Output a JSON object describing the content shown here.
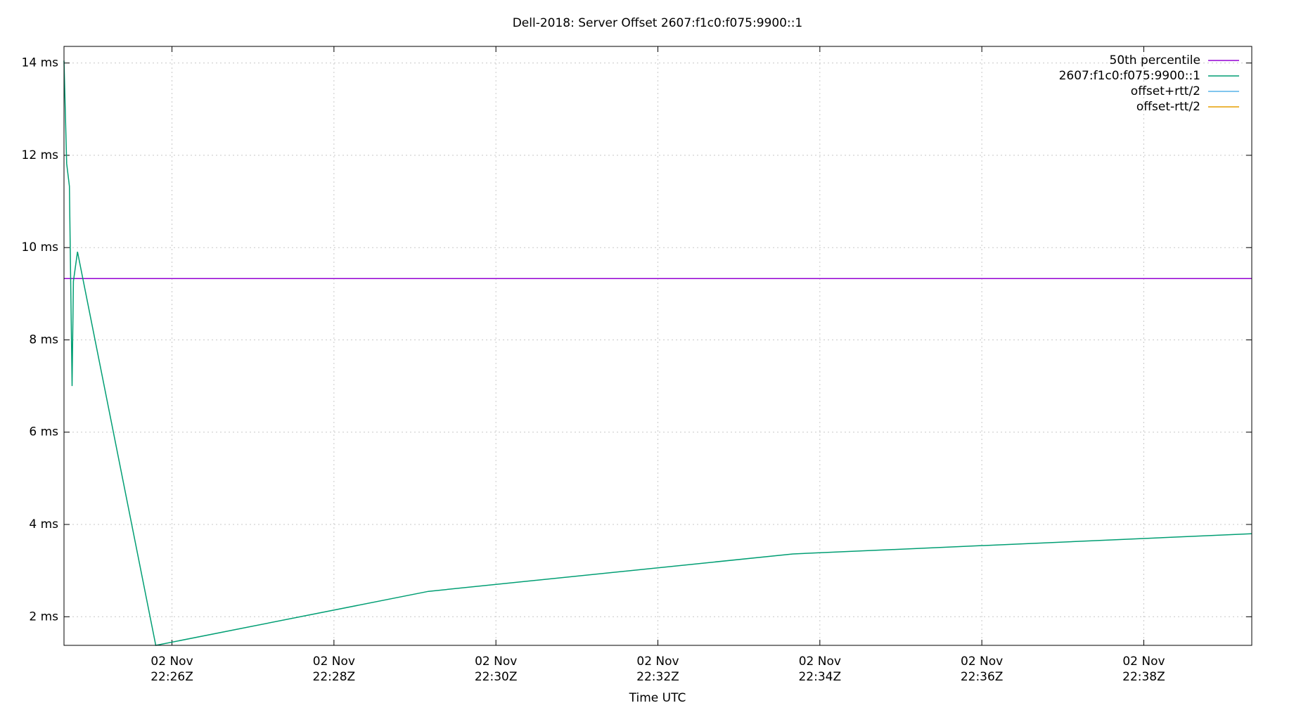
{
  "chart_data": {
    "type": "line",
    "title": "Dell-2018: Server Offset 2607:f1c0:f075:9900::1",
    "x_label": "Time UTC",
    "x": [
      "22:24:40",
      "22:24:42",
      "22:24:44",
      "22:24:46",
      "22:24:47",
      "22:24:50",
      "22:25:48",
      "22:29:10",
      "22:33:40",
      "22:39:20"
    ],
    "series": [
      {
        "name": "50th percentile",
        "color": "#9400d3",
        "values": [
          9.33,
          9.33,
          9.33,
          9.33,
          9.33,
          9.33,
          9.33,
          9.33,
          9.33,
          9.33
        ]
      },
      {
        "name": "2607:f1c0:f075:9900::1",
        "color": "#009e73",
        "values": [
          14.05,
          11.82,
          11.33,
          7.0,
          9.27,
          9.91,
          1.38,
          2.55,
          3.36,
          3.8
        ]
      },
      {
        "name": "offset+rtt/2",
        "color": "#56b4e9",
        "values": [
          null,
          null,
          null,
          null,
          null,
          null,
          null,
          null,
          null,
          null
        ]
      },
      {
        "name": "offset-rtt/2",
        "color": "#e69f00",
        "values": [
          null,
          null,
          null,
          null,
          null,
          null,
          null,
          null,
          null,
          null
        ]
      }
    ],
    "xlim": [
      "22:24:40",
      "22:39:20"
    ],
    "xticks": [
      {
        "value": "22:26:00",
        "label": "02 Nov\n22:26Z"
      },
      {
        "value": "22:28:00",
        "label": "02 Nov\n22:28Z"
      },
      {
        "value": "22:30:00",
        "label": "02 Nov\n22:30Z"
      },
      {
        "value": "22:32:00",
        "label": "02 Nov\n22:32Z"
      },
      {
        "value": "22:34:00",
        "label": "02 Nov\n22:34Z"
      },
      {
        "value": "22:36:00",
        "label": "02 Nov\n22:36Z"
      },
      {
        "value": "22:38:00",
        "label": "02 Nov\n22:38Z"
      }
    ],
    "ylim": [
      1.38,
      14.36
    ],
    "yticks": [
      {
        "value": 2,
        "label": "2 ms"
      },
      {
        "value": 4,
        "label": "4 ms"
      },
      {
        "value": 6,
        "label": "6 ms"
      },
      {
        "value": 8,
        "label": "8 ms"
      },
      {
        "value": 10,
        "label": "10 ms"
      },
      {
        "value": 12,
        "label": "12 ms"
      },
      {
        "value": 14,
        "label": "14 ms"
      }
    ],
    "grid": true,
    "legend": "top-right"
  }
}
